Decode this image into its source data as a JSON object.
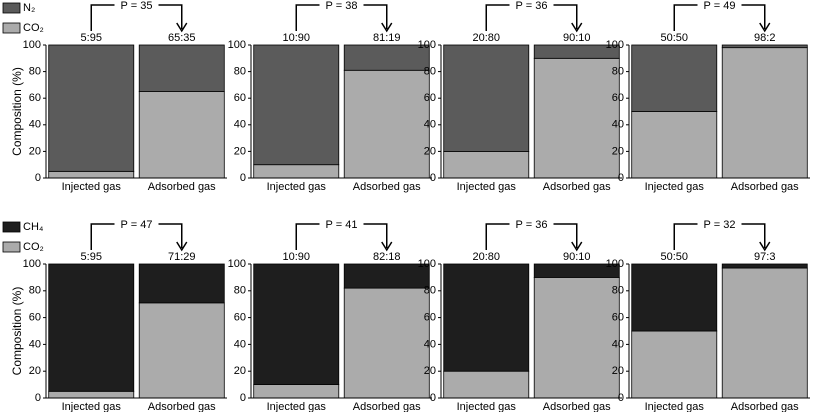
{
  "chart_data": [
    {
      "type": "bar",
      "stacked": true,
      "annotation": "P = 35",
      "ylabel": "Composition (%)",
      "legend": "upper left",
      "categories": [
        "Injected gas",
        "Adsorbed gas"
      ],
      "category_labels": [
        "5:95",
        "65:35"
      ],
      "series": [
        {
          "name": "CO₂",
          "color": "#ababab",
          "values": [
            5,
            65
          ]
        },
        {
          "name": "N₂",
          "color": "#5b5b5b",
          "values": [
            95,
            35
          ]
        }
      ],
      "ylim": [
        0,
        100
      ],
      "yticks": [
        0,
        20,
        40,
        60,
        80,
        100
      ]
    },
    {
      "type": "bar",
      "stacked": true,
      "annotation": "P = 38",
      "categories": [
        "Injected gas",
        "Adsorbed gas"
      ],
      "category_labels": [
        "10:90",
        "81:19"
      ],
      "series": [
        {
          "color": "#ababab",
          "values": [
            10,
            81
          ]
        },
        {
          "color": "#5b5b5b",
          "values": [
            90,
            19
          ]
        }
      ],
      "ylim": [
        0,
        100
      ],
      "yticks": [
        0,
        20,
        40,
        60,
        80,
        100
      ]
    },
    {
      "type": "bar",
      "stacked": true,
      "annotation": "P = 36",
      "categories": [
        "Injected gas",
        "Adsorbed gas"
      ],
      "category_labels": [
        "20:80",
        "90:10"
      ],
      "series": [
        {
          "color": "#ababab",
          "values": [
            20,
            90
          ]
        },
        {
          "color": "#5b5b5b",
          "values": [
            80,
            10
          ]
        }
      ],
      "ylim": [
        0,
        100
      ],
      "yticks": [
        0,
        20,
        40,
        60,
        80,
        100
      ]
    },
    {
      "type": "bar",
      "stacked": true,
      "annotation": "P = 49",
      "categories": [
        "Injected gas",
        "Adsorbed gas"
      ],
      "category_labels": [
        "50:50",
        "98:2"
      ],
      "series": [
        {
          "color": "#ababab",
          "values": [
            50,
            98
          ]
        },
        {
          "color": "#5b5b5b",
          "values": [
            50,
            2
          ]
        }
      ],
      "ylim": [
        0,
        100
      ],
      "yticks": [
        0,
        20,
        40,
        60,
        80,
        100
      ]
    },
    {
      "type": "bar",
      "stacked": true,
      "annotation": "P = 47",
      "ylabel": "Composition (%)",
      "legend": "upper left",
      "categories": [
        "Injected gas",
        "Adsorbed gas"
      ],
      "category_labels": [
        "5:95",
        "71:29"
      ],
      "series": [
        {
          "name": "CO₂",
          "color": "#ababab",
          "values": [
            5,
            71
          ]
        },
        {
          "name": "CH₄",
          "color": "#1e1e1e",
          "values": [
            95,
            29
          ]
        }
      ],
      "ylim": [
        0,
        100
      ],
      "yticks": [
        0,
        20,
        40,
        60,
        80,
        100
      ]
    },
    {
      "type": "bar",
      "stacked": true,
      "annotation": "P = 41",
      "categories": [
        "Injected gas",
        "Adsorbed gas"
      ],
      "category_labels": [
        "10:90",
        "82:18"
      ],
      "series": [
        {
          "color": "#ababab",
          "values": [
            10,
            82
          ]
        },
        {
          "color": "#1e1e1e",
          "values": [
            90,
            18
          ]
        }
      ],
      "ylim": [
        0,
        100
      ],
      "yticks": [
        0,
        20,
        40,
        60,
        80,
        100
      ]
    },
    {
      "type": "bar",
      "stacked": true,
      "annotation": "P = 36",
      "categories": [
        "Injected gas",
        "Adsorbed gas"
      ],
      "category_labels": [
        "20:80",
        "90:10"
      ],
      "series": [
        {
          "color": "#ababab",
          "values": [
            20,
            90
          ]
        },
        {
          "color": "#1e1e1e",
          "values": [
            80,
            10
          ]
        }
      ],
      "ylim": [
        0,
        100
      ],
      "yticks": [
        0,
        20,
        40,
        60,
        80,
        100
      ]
    },
    {
      "type": "bar",
      "stacked": true,
      "annotation": "P = 32",
      "categories": [
        "Injected gas",
        "Adsorbed gas"
      ],
      "category_labels": [
        "50:50",
        "97:3"
      ],
      "series": [
        {
          "color": "#ababab",
          "values": [
            50,
            97
          ]
        },
        {
          "color": "#1e1e1e",
          "values": [
            50,
            3
          ]
        }
      ],
      "ylim": [
        0,
        100
      ],
      "yticks": [
        0,
        20,
        40,
        60,
        80,
        100
      ]
    }
  ]
}
